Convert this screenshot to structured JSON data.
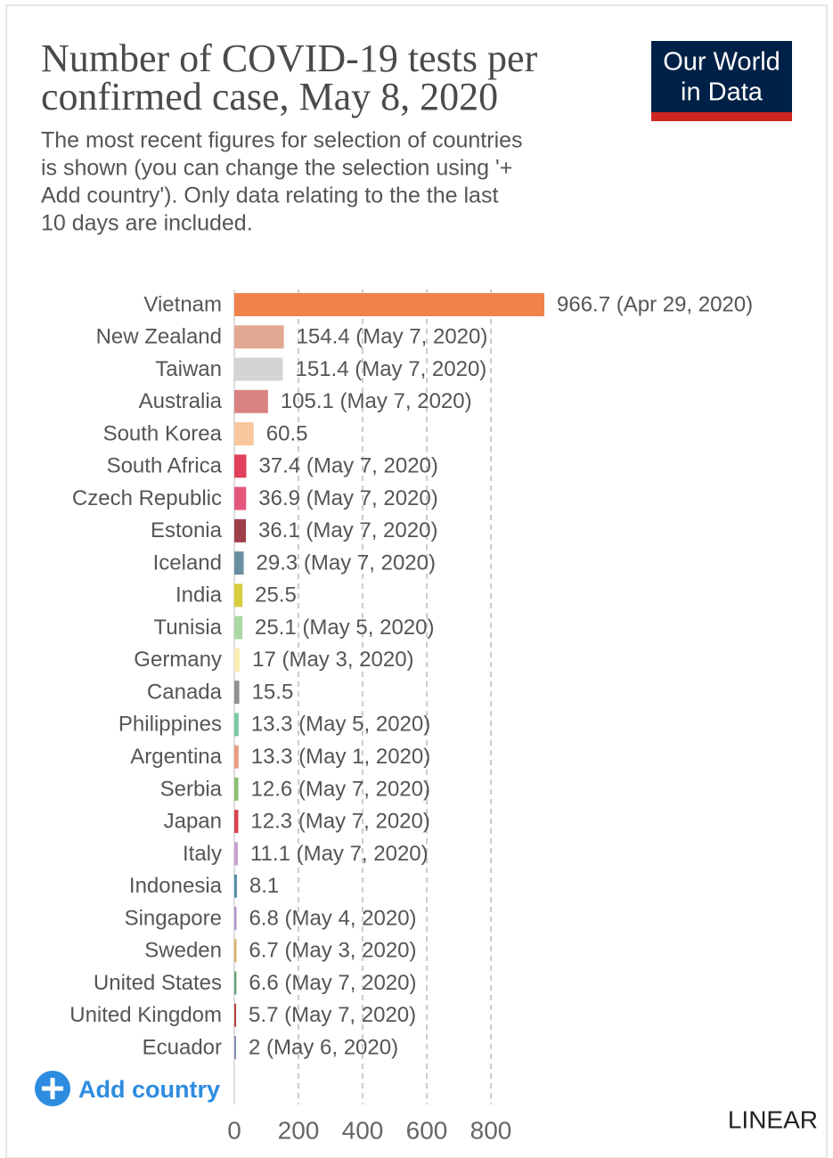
{
  "chart_data": {
    "type": "bar",
    "orientation": "horizontal",
    "title": [
      "Number of COVID-19 tests per",
      "confirmed case, May 8, 2020"
    ],
    "subtitle": [
      "The most recent figures for selection of countries",
      "is shown (you can change the selection using '+",
      "Add country'). Only data relating to the the last",
      "10 days are included."
    ],
    "logo": [
      "Our World",
      "in Data"
    ],
    "add_button": "Add country",
    "scale_toggle": "LINEAR",
    "categories": [
      "Vietnam",
      "New Zealand",
      "Taiwan",
      "Australia",
      "South Korea",
      "South Africa",
      "Czech Republic",
      "Estonia",
      "Iceland",
      "India",
      "Tunisia",
      "Germany",
      "Canada",
      "Philippines",
      "Argentina",
      "Serbia",
      "Japan",
      "Italy",
      "Indonesia",
      "Singapore",
      "Sweden",
      "United States",
      "United Kingdom",
      "Ecuador"
    ],
    "values": [
      966.7,
      154.4,
      151.4,
      105.1,
      60.5,
      37.4,
      36.9,
      36.1,
      29.3,
      25.5,
      25.1,
      17,
      15.5,
      13.3,
      13.3,
      12.6,
      12.3,
      11.1,
      8.1,
      6.8,
      6.7,
      6.6,
      5.7,
      2
    ],
    "value_labels": [
      "966.7 (Apr 29, 2020)",
      "154.4 (May 7, 2020)",
      "151.4 (May 7, 2020)",
      "105.1 (May 7, 2020)",
      "60.5",
      "37.4 (May 7, 2020)",
      "36.9 (May 7, 2020)",
      "36.1 (May 7, 2020)",
      "29.3 (May 7, 2020)",
      "25.5",
      "25.1 (May 5, 2020)",
      "17 (May 3, 2020)",
      "15.5",
      "13.3 (May 5, 2020)",
      "13.3 (May 1, 2020)",
      "12.6 (May 7, 2020)",
      "12.3 (May 7, 2020)",
      "11.1 (May 7, 2020)",
      "8.1",
      "6.8 (May 4, 2020)",
      "6.7 (May 3, 2020)",
      "6.6 (May 7, 2020)",
      "5.7 (May 7, 2020)",
      "2 (May 6, 2020)"
    ],
    "colors": [
      "#f0834a",
      "#e2a891",
      "#d4d4d4",
      "#d98282",
      "#f8c79d",
      "#e0405a",
      "#e3577c",
      "#9e3f4a",
      "#6a8fa0",
      "#d8cd3c",
      "#a9d8a2",
      "#faefb2",
      "#909090",
      "#7bc9a2",
      "#e89c82",
      "#8ac172",
      "#d84050",
      "#c9a1d2",
      "#5190a9",
      "#b192c9",
      "#d9b162",
      "#62a272",
      "#b04242",
      "#8392b2"
    ],
    "xlim": [
      0,
      1000
    ],
    "xticks": [
      0,
      200,
      400,
      600,
      800
    ],
    "grid": true
  }
}
